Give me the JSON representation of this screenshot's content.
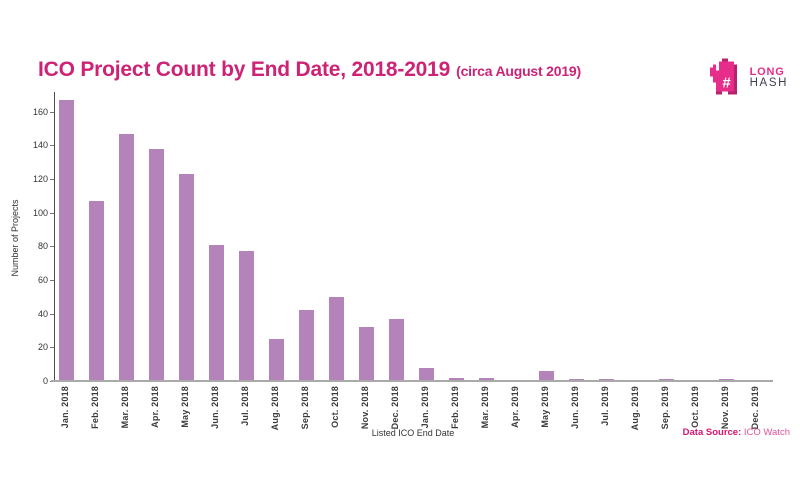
{
  "title": {
    "main": "ICO Project Count by End Date, 2018-2019",
    "suffix": "(circa August 2019)"
  },
  "logo": {
    "icon": "longhash-squirrel-icon",
    "line1": "LONG",
    "line2": "HASH"
  },
  "footer": {
    "source_label": "Data Source:",
    "source_value": "ICO Watch"
  },
  "colors": {
    "accent_pink": "#cc2376",
    "bar_purple": "#b383ba",
    "logo_pink": "#e62d8a",
    "logo_dark": "#3e3e50",
    "source_label_pink": "#d6146e",
    "source_value_pink": "#e2569a"
  },
  "chart_data": {
    "type": "bar",
    "title": "ICO Project Count by End Date, 2018-2019 (circa August 2019)",
    "xlabel": "Listed ICO End Date",
    "ylabel": "Number of Projects",
    "categories": [
      "Jan. 2018",
      "Feb. 2018",
      "Mar. 2018",
      "Apr. 2018",
      "May 2018",
      "Jun. 2018",
      "Jul. 2018",
      "Aug. 2018",
      "Sep. 2018",
      "Oct. 2018",
      "Nov. 2018",
      "Dec. 2018",
      "Jan. 2019",
      "Feb. 2019",
      "Mar. 2019",
      "Apr. 2019",
      "May 2019",
      "Jun. 2019",
      "Jul. 2019",
      "Aug. 2019",
      "Sep. 2019",
      "Oct. 2019",
      "Nov. 2019",
      "Dec. 2019"
    ],
    "values": [
      167,
      107,
      147,
      138,
      123,
      81,
      77,
      25,
      42,
      50,
      32,
      37,
      8,
      2,
      2,
      0,
      6,
      1,
      1,
      0,
      1,
      0,
      1,
      0
    ],
    "ylim": [
      0,
      170
    ],
    "yticks": [
      0,
      20,
      40,
      60,
      80,
      100,
      120,
      140,
      160
    ],
    "grid": false,
    "legend": false,
    "bar_color": "#b383ba"
  }
}
